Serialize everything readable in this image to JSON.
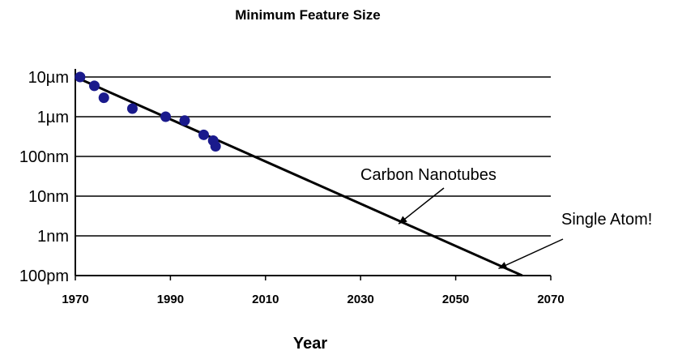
{
  "chart_data": {
    "type": "scatter",
    "title": "Minimum Feature Size",
    "xlabel": "Year",
    "ylabel": "",
    "x_scale": "linear",
    "y_scale": "log",
    "xlim": [
      1970,
      2070
    ],
    "ylim_meters": [
      1e-10,
      1e-05
    ],
    "grid": "horizontal",
    "x_ticks": [
      "1970",
      "1990",
      "2010",
      "2030",
      "2050",
      "2070"
    ],
    "y_ticks": [
      {
        "label": "10µm",
        "value": 1e-05
      },
      {
        "label": "1µm",
        "value": 1e-06
      },
      {
        "label": "100nm",
        "value": 1e-07
      },
      {
        "label": "10nm",
        "value": 1e-08
      },
      {
        "label": "1nm",
        "value": 1e-09
      },
      {
        "label": "100pm",
        "value": 1e-10
      }
    ],
    "series": [
      {
        "points": [
          {
            "x": 1971,
            "y": 1e-05
          },
          {
            "x": 1974,
            "y": 6e-06
          },
          {
            "x": 1976,
            "y": 3e-06
          },
          {
            "x": 1982,
            "y": 1.6e-06
          },
          {
            "x": 1989,
            "y": 1e-06
          },
          {
            "x": 1993,
            "y": 8e-07
          },
          {
            "x": 1997,
            "y": 3.5e-07
          },
          {
            "x": 1999,
            "y": 2.5e-07
          },
          {
            "x": 1999.5,
            "y": 1.8e-07
          }
        ]
      }
    ],
    "trend_line": {
      "x": [
        1970,
        2064
      ],
      "y": [
        1e-05,
        1e-10
      ]
    },
    "annotations": [
      {
        "text": "Carbon Nanotubes",
        "arrow_to": {
          "x": 2038,
          "y": 2e-09
        }
      },
      {
        "text": "Single Atom!",
        "arrow_to": {
          "x": 2059,
          "y": 1.5e-10
        }
      }
    ]
  }
}
